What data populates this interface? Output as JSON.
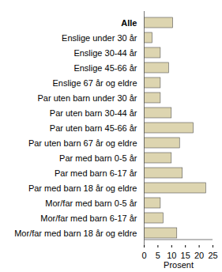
{
  "chart_data": {
    "type": "bar",
    "orientation": "horizontal",
    "categories": [
      "Alle",
      "Enslige under 30 år",
      "Enslige 30-44 år",
      "Enslige 45-66 år",
      "Enslige 67 år og eldre",
      "Par uten barn under 30 år",
      "Par uten barn 30-44 år",
      "Par uten barn 45-66 år",
      "Par uten barn 67 år og eldre",
      "Par med barn 0-5 år",
      "Par med barn 6-17 år",
      "Par med barn 18 år og eldre",
      "Mor/far med barn 0-5 år",
      "Mor/far med barn 6-17 år",
      "Mor/far med barn 18 år og eldre"
    ],
    "values": [
      10.5,
      3,
      6,
      9,
      6,
      6,
      10,
      18,
      13,
      10,
      14,
      22.5,
      6,
      7,
      12
    ],
    "color": "#ddd5b0",
    "x_label": "Prosent",
    "xlim": [
      0,
      25
    ],
    "xticks": [
      0,
      5,
      10,
      15,
      20,
      25
    ],
    "grid": false
  }
}
